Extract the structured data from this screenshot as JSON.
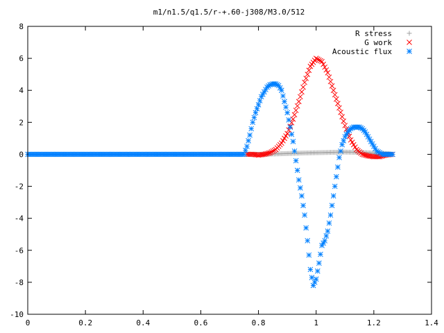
{
  "chart_data": {
    "type": "scatter",
    "title": "m1/n1.5/q1.5/r-+.60-j308/M3.0/512",
    "xlabel": "",
    "ylabel": "",
    "xlim": [
      0,
      1.4
    ],
    "ylim": [
      -10,
      8
    ],
    "xticks": [
      "0",
      "0.2",
      "0.4",
      "0.6",
      "0.8",
      "1",
      "1.2",
      "1.4"
    ],
    "yticks": [
      "-10",
      "-8",
      "-6",
      "-4",
      "-2",
      "0",
      "2",
      "4",
      "6",
      "8"
    ],
    "grid": false,
    "legend_position": "top-right",
    "series": [
      {
        "name": "R stress",
        "marker": "plus",
        "color": "#a0a0a0",
        "x": [
          0.76,
          0.8,
          0.85,
          0.9,
          0.95,
          1.0,
          1.05,
          1.1,
          1.15,
          1.2,
          1.25,
          1.265
        ],
        "y": [
          0.0,
          0.0,
          0.02,
          0.05,
          0.08,
          0.1,
          0.12,
          0.14,
          0.12,
          0.08,
          0.04,
          0.0
        ]
      },
      {
        "name": "G work",
        "marker": "cross",
        "color": "#ff0000",
        "x": [
          0.76,
          0.78,
          0.8,
          0.82,
          0.84,
          0.86,
          0.88,
          0.9,
          0.92,
          0.94,
          0.96,
          0.98,
          1.0,
          1.02,
          1.04,
          1.06,
          1.08,
          1.1,
          1.12,
          1.14,
          1.16,
          1.18,
          1.2,
          1.22,
          1.24,
          1.265
        ],
        "y": [
          0.0,
          0.0,
          -0.05,
          0.0,
          0.1,
          0.3,
          0.7,
          1.3,
          2.2,
          3.3,
          4.5,
          5.5,
          6.0,
          5.8,
          5.1,
          4.0,
          2.9,
          1.8,
          0.9,
          0.3,
          0.0,
          -0.1,
          -0.15,
          -0.15,
          -0.05,
          0.0
        ]
      },
      {
        "name": "Acoustic flux",
        "marker": "star",
        "color": "#0080ff",
        "x": [
          0.0,
          0.05,
          0.1,
          0.15,
          0.2,
          0.25,
          0.3,
          0.35,
          0.4,
          0.45,
          0.5,
          0.55,
          0.6,
          0.65,
          0.7,
          0.75,
          0.76,
          0.77,
          0.78,
          0.79,
          0.8,
          0.81,
          0.82,
          0.83,
          0.84,
          0.85,
          0.86,
          0.87,
          0.88,
          0.89,
          0.9,
          0.91,
          0.92,
          0.93,
          0.94,
          0.95,
          0.96,
          0.97,
          0.98,
          0.99,
          1.0,
          1.01,
          1.02,
          1.03,
          1.04,
          1.05,
          1.06,
          1.07,
          1.08,
          1.09,
          1.1,
          1.11,
          1.12,
          1.13,
          1.14,
          1.15,
          1.16,
          1.17,
          1.18,
          1.19,
          1.2,
          1.21,
          1.22,
          1.23,
          1.24,
          1.25,
          1.26,
          1.265
        ],
        "y": [
          0.0,
          0.0,
          0.0,
          0.0,
          0.0,
          0.0,
          0.0,
          0.0,
          0.0,
          0.0,
          0.0,
          0.0,
          0.0,
          0.0,
          0.0,
          0.0,
          0.5,
          1.2,
          2.0,
          2.6,
          3.1,
          3.6,
          3.9,
          4.2,
          4.35,
          4.4,
          4.4,
          4.3,
          4.0,
          3.3,
          2.6,
          1.7,
          0.8,
          -0.4,
          -1.6,
          -2.6,
          -3.8,
          -5.4,
          -7.2,
          -8.2,
          -7.8,
          -6.8,
          -5.7,
          -5.4,
          -4.8,
          -3.8,
          -2.6,
          -1.4,
          -0.2,
          0.6,
          1.1,
          1.4,
          1.6,
          1.7,
          1.7,
          1.7,
          1.6,
          1.4,
          1.1,
          0.8,
          0.5,
          0.2,
          0.1,
          0.0,
          0.0,
          0.0,
          0.0,
          0.0
        ]
      }
    ]
  }
}
